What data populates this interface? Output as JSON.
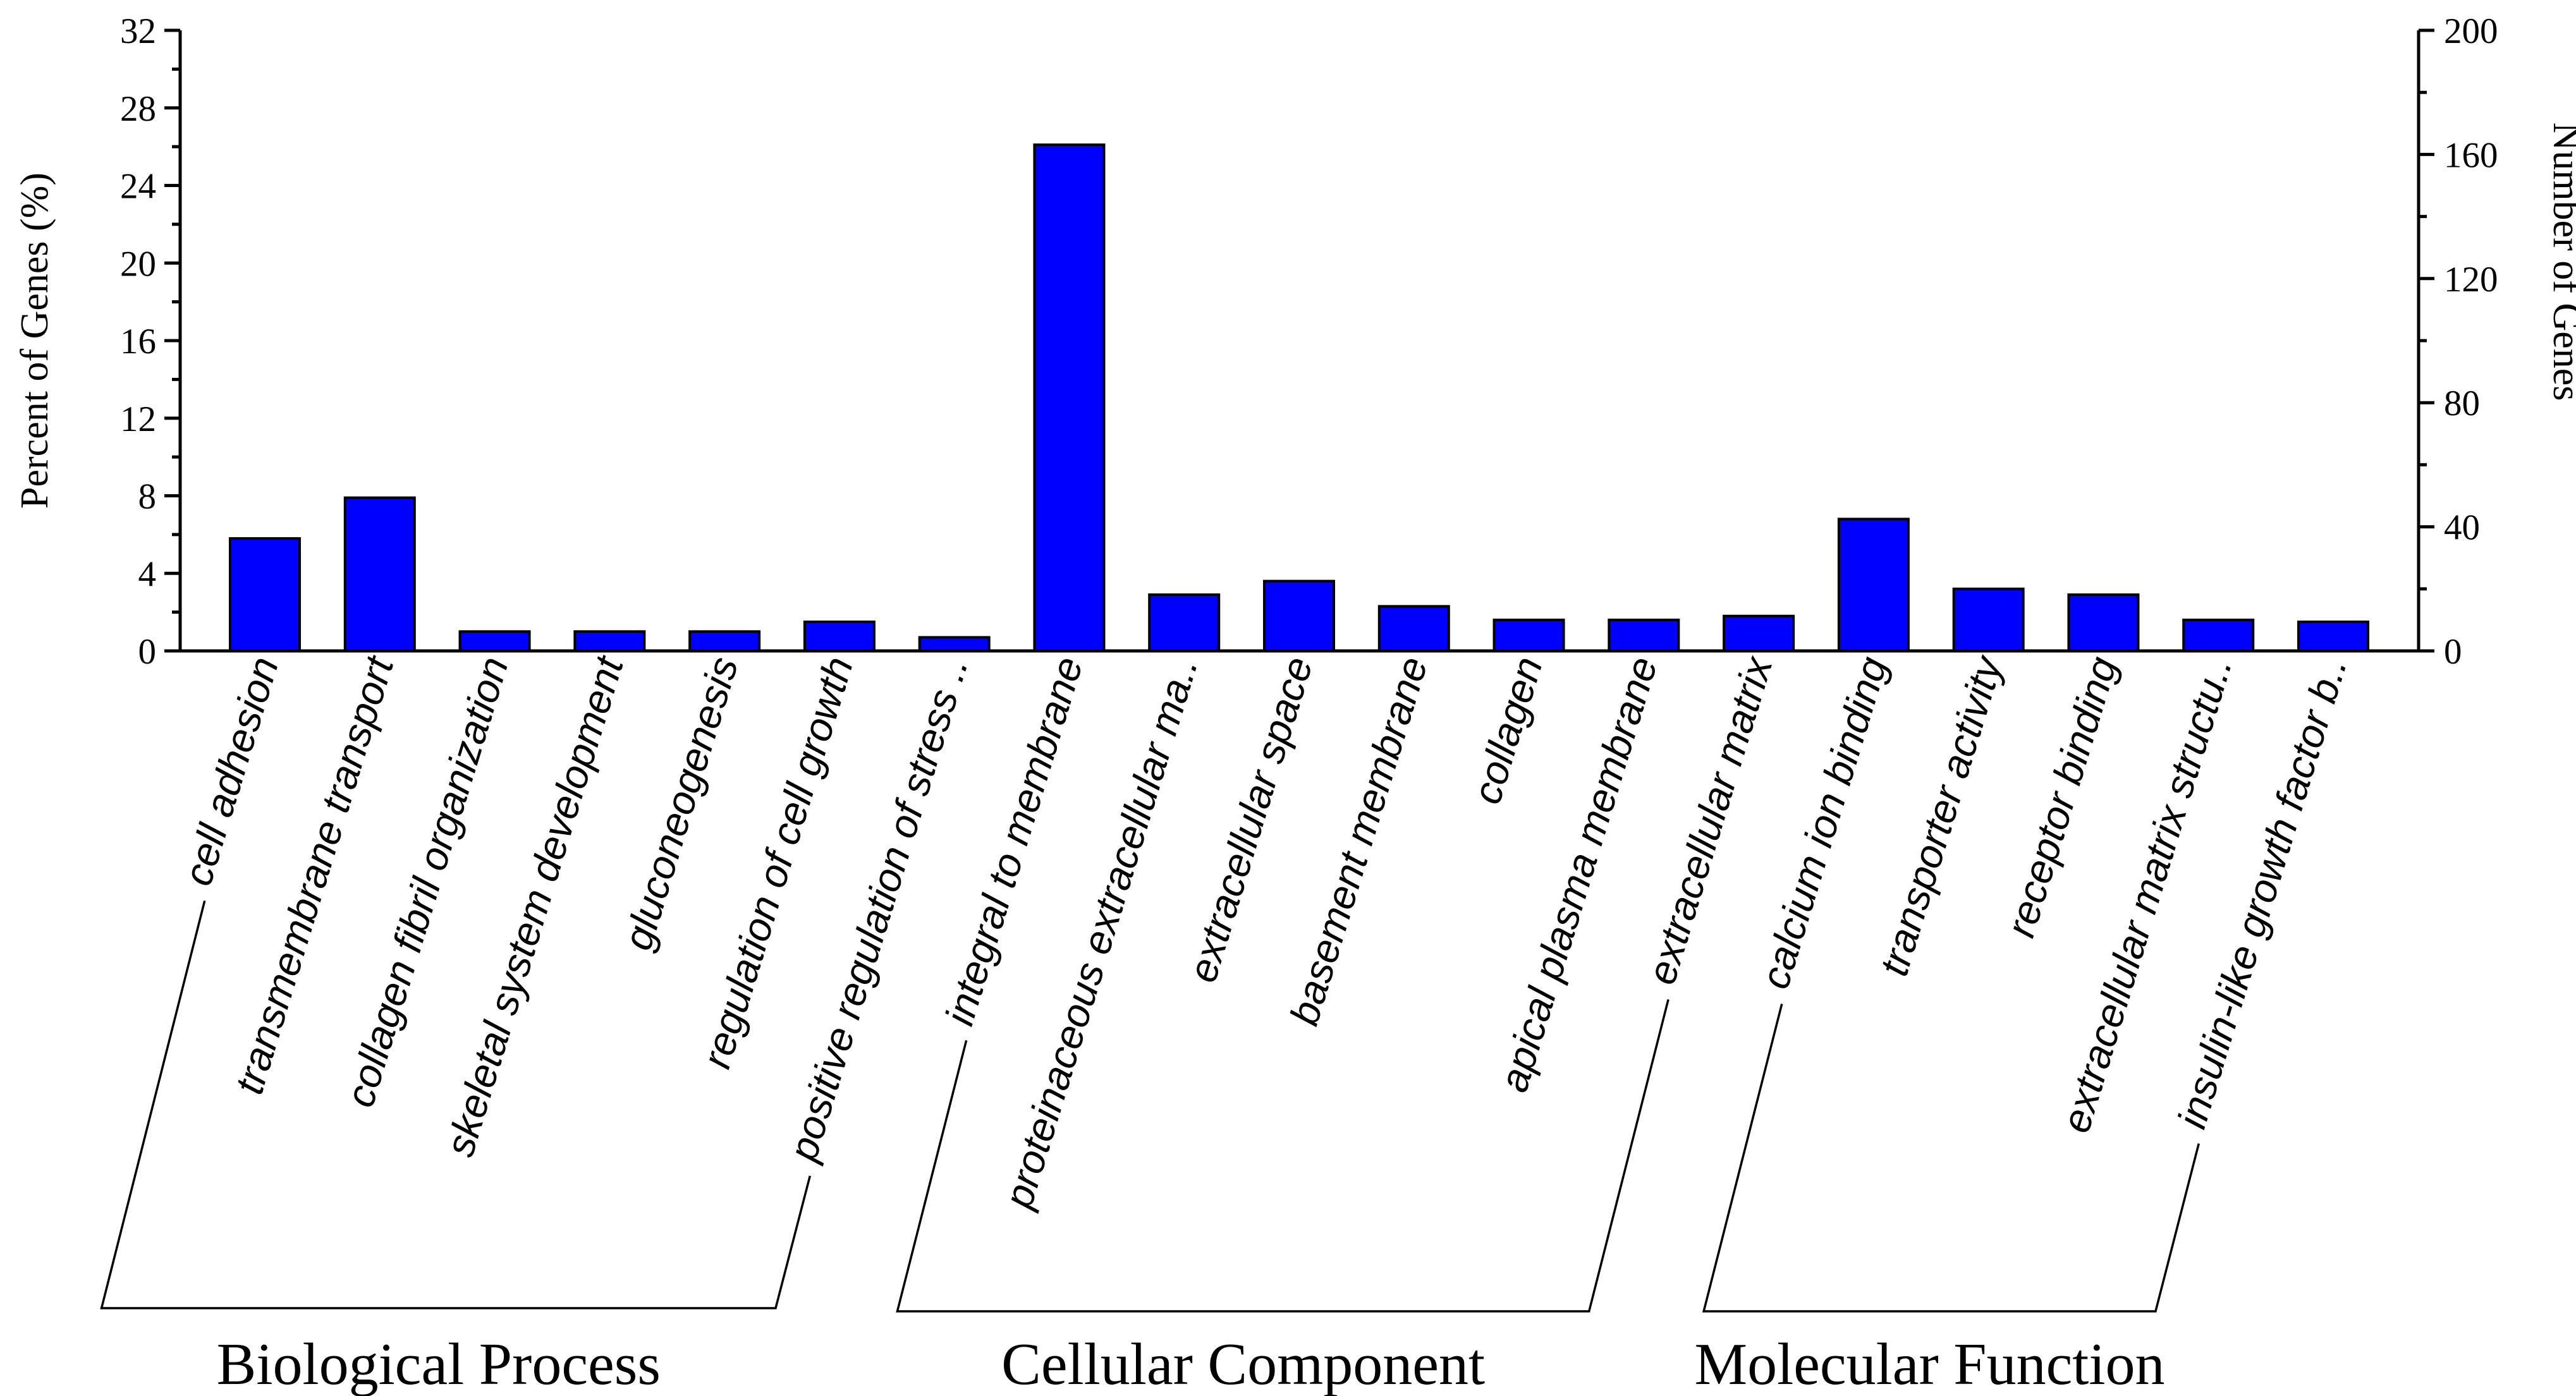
{
  "chart_data": {
    "type": "bar",
    "title": "",
    "xlabel": "",
    "ylabel": "Percent of Genes (%)",
    "y2label": "Number of Genes",
    "ylim": [
      0,
      32
    ],
    "y2lim": [
      0,
      200
    ],
    "yticks": [
      "0",
      "4",
      "8",
      "12",
      "16",
      "20",
      "24",
      "28",
      "32"
    ],
    "y2ticks": [
      "0",
      "40",
      "80",
      "120",
      "160",
      "200"
    ],
    "bar_color": "#0000ff",
    "categories": [
      "cell adhesion",
      "transmembrane transport",
      "collagen fibril organization",
      "skeletal system development",
      "gluconeogenesis",
      "regulation of cell growth",
      "positive regulation of stress ..",
      "integral to membrane",
      "proteinaceous extracellular ma..",
      "extracellular space",
      "basement membrane",
      "collagen",
      "apical plasma membrane",
      "extracellular matrix",
      "calcium ion binding",
      "transporter activity",
      "receptor binding",
      "extracellular matrix structu..",
      "insulin-like growth factor b.."
    ],
    "values": [
      5.8,
      7.9,
      1.0,
      1.0,
      1.0,
      1.5,
      0.7,
      26.1,
      2.9,
      3.6,
      2.3,
      1.6,
      1.6,
      1.8,
      6.8,
      3.2,
      2.9,
      1.6,
      1.5
    ],
    "groups": [
      {
        "label": "Biological Process",
        "start": 0,
        "end": 6
      },
      {
        "label": "Cellular Component",
        "start": 7,
        "end": 13
      },
      {
        "label": "Molecular Function",
        "start": 14,
        "end": 18
      }
    ]
  }
}
